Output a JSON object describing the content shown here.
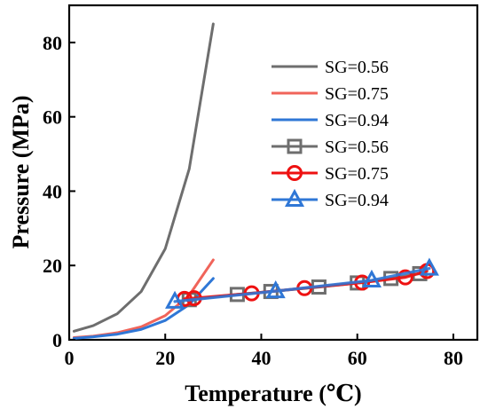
{
  "chart_data": {
    "type": "line",
    "title": "",
    "xlabel": "Temperature (℃)",
    "ylabel": "Pressure (MPa)",
    "xlim": [
      0,
      85
    ],
    "ylim": [
      0,
      90
    ],
    "xticks": [
      0,
      20,
      40,
      60,
      80
    ],
    "yticks": [
      0,
      20,
      40,
      60,
      80
    ],
    "grid": false,
    "legend_position": "top-right",
    "series": [
      {
        "name": "SG=0.56",
        "style": "line",
        "color": "#6e6e6e",
        "marker": "none",
        "points": [
          [
            1,
            2.3
          ],
          [
            5,
            3.8
          ],
          [
            10,
            7
          ],
          [
            15,
            13
          ],
          [
            20,
            24.5
          ],
          [
            25,
            46
          ],
          [
            30,
            85
          ]
        ]
      },
      {
        "name": "SG=0.75",
        "style": "line",
        "color": "#f0645a",
        "marker": "none",
        "points": [
          [
            1,
            0.6
          ],
          [
            5,
            1
          ],
          [
            10,
            1.9
          ],
          [
            15,
            3.5
          ],
          [
            20,
            6.5
          ],
          [
            25,
            12
          ],
          [
            30,
            21.5
          ]
        ]
      },
      {
        "name": "SG=0.94",
        "style": "line",
        "color": "#2f77d6",
        "marker": "none",
        "points": [
          [
            1,
            0.4
          ],
          [
            5,
            0.8
          ],
          [
            10,
            1.5
          ],
          [
            15,
            2.8
          ],
          [
            20,
            5.2
          ],
          [
            25,
            9.5
          ],
          [
            30,
            16.5
          ]
        ]
      },
      {
        "name": "SG=0.56",
        "style": "line-marker",
        "color": "#6e6e6e",
        "marker": "square",
        "points": [
          [
            25,
            10.8
          ],
          [
            35,
            12.2
          ],
          [
            42,
            13
          ],
          [
            52,
            14.2
          ],
          [
            60,
            15.3
          ],
          [
            67,
            16.5
          ],
          [
            73,
            17.8
          ]
        ]
      },
      {
        "name": "SG=0.75",
        "style": "line-marker",
        "color": "#ee1111",
        "marker": "circle",
        "points": [
          [
            24,
            11
          ],
          [
            26,
            11.2
          ],
          [
            38,
            12.5
          ],
          [
            49,
            13.9
          ],
          [
            61,
            15.4
          ],
          [
            70,
            16.8
          ],
          [
            74.5,
            18.5
          ]
        ]
      },
      {
        "name": "SG=0.94",
        "style": "line-marker",
        "color": "#2f77d6",
        "marker": "triangle",
        "points": [
          [
            22,
            10.3
          ],
          [
            43,
            13.1
          ],
          [
            63,
            16
          ],
          [
            75,
            19.2
          ]
        ]
      }
    ]
  }
}
